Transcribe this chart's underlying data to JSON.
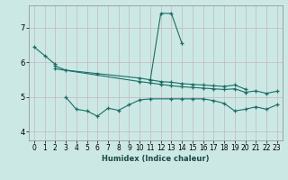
{
  "xlabel": "Humidex (Indice chaleur)",
  "background_color": "#cce8e5",
  "grid_color": "#c0b8c0",
  "line_color": "#1a6e65",
  "xlim": [
    -0.5,
    23.5
  ],
  "ylim": [
    3.75,
    7.65
  ],
  "yticks": [
    4,
    5,
    6,
    7
  ],
  "line1_x": [
    0,
    1,
    2
  ],
  "line1_y": [
    6.45,
    6.2,
    5.95
  ],
  "line2_x": [
    11,
    12,
    13,
    14
  ],
  "line2_y": [
    5.48,
    7.42,
    7.42,
    6.55
  ],
  "line3_x": [
    2,
    3,
    6,
    10,
    11,
    12,
    13,
    14,
    15,
    16,
    17,
    18,
    19,
    20
  ],
  "line3_y": [
    5.9,
    5.78,
    5.68,
    5.55,
    5.5,
    5.45,
    5.43,
    5.39,
    5.37,
    5.35,
    5.33,
    5.31,
    5.35,
    5.23
  ],
  "line4_x": [
    2,
    10,
    11,
    12,
    13,
    14,
    15,
    16,
    17,
    18,
    19,
    20,
    21,
    22,
    23
  ],
  "line4_y": [
    5.82,
    5.45,
    5.41,
    5.37,
    5.33,
    5.3,
    5.28,
    5.26,
    5.24,
    5.22,
    5.24,
    5.14,
    5.18,
    5.11,
    5.17
  ],
  "line5_x": [
    3,
    4,
    5,
    6,
    7,
    8,
    9,
    10,
    11,
    13,
    14,
    15,
    16,
    17,
    18,
    19,
    20,
    21,
    22,
    23
  ],
  "line5_y": [
    5.0,
    4.65,
    4.6,
    4.45,
    4.68,
    4.62,
    4.78,
    4.92,
    4.95,
    4.95,
    4.95,
    4.95,
    4.95,
    4.9,
    4.82,
    4.6,
    4.65,
    4.72,
    4.65,
    4.78
  ]
}
